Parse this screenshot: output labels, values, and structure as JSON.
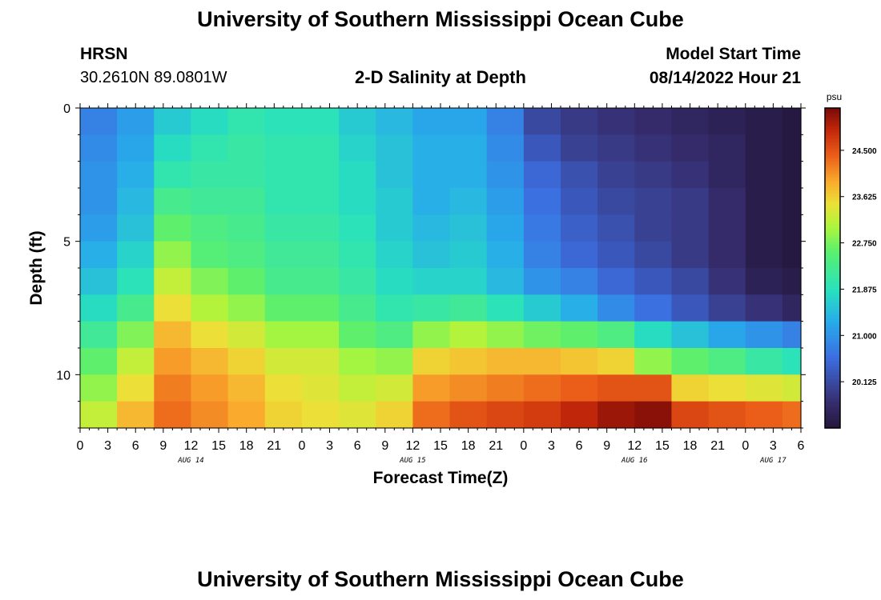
{
  "header": {
    "title": "University of Southern Mississippi Ocean Cube",
    "station": "HRSN",
    "coordinates": "30.2610N  89.0801W",
    "subtitle": "2-D Salinity at Depth",
    "model_label": "Model Start Time",
    "model_time": "08/14/2022 Hour 21"
  },
  "footer": {
    "title": "University of Southern Mississippi Ocean Cube"
  },
  "chart_data": {
    "type": "heatmap",
    "title": "2-D Salinity at Depth",
    "xlabel": "Forecast Time(Z)",
    "ylabel": "Depth (ft)",
    "x_tick_labels": [
      "0",
      "3",
      "6",
      "9",
      "12",
      "15",
      "18",
      "21",
      "0",
      "3",
      "6",
      "9",
      "12",
      "15",
      "18",
      "21",
      "0",
      "3",
      "6",
      "9",
      "12",
      "15",
      "18",
      "21",
      "0",
      "3",
      "6"
    ],
    "x_hours_range": [
      0,
      78
    ],
    "day_labels": [
      {
        "label": "AUG 14",
        "hour": 12
      },
      {
        "label": "AUG 15",
        "hour": 36
      },
      {
        "label": "AUG 16",
        "hour": 60
      },
      {
        "label": "AUG 17",
        "hour": 75
      }
    ],
    "y_tick_labels": [
      "0",
      "5",
      "10"
    ],
    "y_tick_values": [
      0,
      5,
      10
    ],
    "ylim": [
      0,
      12
    ],
    "depth_levels_ft": [
      0.5,
      1.5,
      2.5,
      3.5,
      4.5,
      5.5,
      6.5,
      7.5,
      8.5,
      9.5,
      10.5,
      11.5
    ],
    "time_columns_hours": [
      0,
      4,
      8,
      12,
      16,
      20,
      24,
      28,
      32,
      36,
      40,
      44,
      48,
      52,
      56,
      60,
      64,
      68,
      72,
      76
    ],
    "salinity_psu": [
      [
        20.8,
        21.1,
        21.6,
        21.8,
        22.0,
        21.9,
        21.9,
        21.6,
        21.4,
        21.2,
        21.2,
        20.8,
        20.1,
        19.9,
        19.8,
        19.7,
        19.6,
        19.5,
        19.4,
        19.3
      ],
      [
        20.9,
        21.2,
        21.8,
        22.0,
        22.1,
        22.0,
        22.0,
        21.7,
        21.5,
        21.3,
        21.3,
        20.9,
        20.3,
        20.0,
        19.9,
        19.8,
        19.7,
        19.6,
        19.4,
        19.3
      ],
      [
        21.0,
        21.3,
        22.0,
        22.1,
        22.1,
        22.0,
        22.0,
        21.8,
        21.5,
        21.3,
        21.3,
        21.0,
        20.5,
        20.2,
        20.0,
        19.9,
        19.8,
        19.6,
        19.4,
        19.3
      ],
      [
        21.0,
        21.4,
        22.3,
        22.2,
        22.2,
        22.0,
        22.0,
        21.8,
        21.6,
        21.3,
        21.4,
        21.1,
        20.6,
        20.3,
        20.1,
        20.0,
        19.9,
        19.7,
        19.4,
        19.3
      ],
      [
        21.1,
        21.5,
        22.6,
        22.4,
        22.3,
        22.1,
        22.1,
        21.9,
        21.6,
        21.4,
        21.5,
        21.2,
        20.7,
        20.4,
        20.2,
        20.0,
        19.9,
        19.7,
        19.4,
        19.3
      ],
      [
        21.3,
        21.7,
        22.9,
        22.5,
        22.4,
        22.2,
        22.2,
        22.0,
        21.7,
        21.5,
        21.6,
        21.3,
        20.8,
        20.5,
        20.3,
        20.1,
        19.9,
        19.7,
        19.4,
        19.3
      ],
      [
        21.5,
        21.9,
        23.2,
        22.8,
        22.6,
        22.3,
        22.3,
        22.1,
        21.8,
        21.7,
        21.7,
        21.4,
        21.0,
        20.8,
        20.5,
        20.3,
        20.1,
        19.8,
        19.5,
        19.4
      ],
      [
        21.8,
        22.3,
        23.5,
        23.1,
        22.9,
        22.6,
        22.6,
        22.3,
        22.0,
        22.1,
        22.2,
        21.9,
        21.6,
        21.3,
        20.9,
        20.6,
        20.3,
        20.0,
        19.8,
        19.6
      ],
      [
        22.2,
        22.8,
        23.8,
        23.5,
        23.3,
        23.0,
        23.0,
        22.6,
        22.4,
        22.9,
        23.1,
        22.9,
        22.7,
        22.6,
        22.4,
        21.8,
        21.5,
        21.2,
        21.0,
        20.8
      ],
      [
        22.6,
        23.2,
        24.0,
        23.8,
        23.6,
        23.3,
        23.3,
        23.0,
        22.9,
        23.6,
        23.7,
        23.8,
        23.8,
        23.7,
        23.6,
        22.9,
        22.6,
        22.4,
        22.1,
        21.9
      ],
      [
        22.9,
        23.5,
        24.2,
        24.0,
        23.8,
        23.5,
        23.4,
        23.2,
        23.3,
        24.0,
        24.1,
        24.2,
        24.3,
        24.4,
        24.5,
        24.5,
        23.6,
        23.5,
        23.4,
        23.3
      ],
      [
        23.2,
        23.8,
        24.3,
        24.1,
        23.9,
        23.6,
        23.5,
        23.4,
        23.6,
        24.3,
        24.5,
        24.6,
        24.7,
        24.9,
        25.1,
        25.2,
        24.6,
        24.5,
        24.4,
        24.3
      ]
    ],
    "colorbar": {
      "unit": "psu",
      "tick_labels": [
        "24.500",
        "23.625",
        "22.750",
        "21.875",
        "21.000",
        "20.125"
      ],
      "tick_values": [
        24.5,
        23.625,
        22.75,
        21.875,
        21.0,
        20.125
      ],
      "range": [
        19.25,
        25.3
      ]
    }
  }
}
